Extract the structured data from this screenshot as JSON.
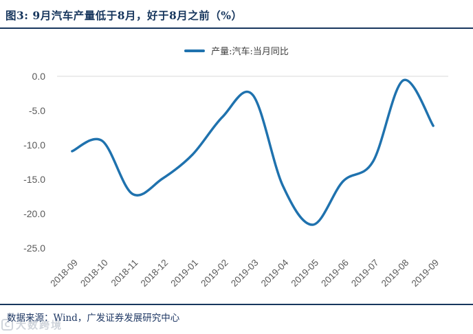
{
  "figure": {
    "title": "图3:  9月汽车产量低于8月，好于8月之前（%）",
    "source_note": "数据来源：Wind，广发证券发展研究中心",
    "watermark_text": "大数跨境",
    "watermark_logo": "C"
  },
  "chart_data": {
    "type": "line",
    "smooth": true,
    "title": "",
    "xlabel": "",
    "ylabel": "",
    "categories": [
      "2018-09",
      "2018-10",
      "2018-11",
      "2018-12",
      "2019-01",
      "2019-02",
      "2019-03",
      "2019-04",
      "2019-05",
      "2019-06",
      "2019-07",
      "2019-08",
      "2019-09"
    ],
    "series": [
      {
        "name": "产量:汽车:当月同比",
        "values": [
          -10.9,
          -9.4,
          -17.1,
          -14.9,
          -11.4,
          -5.9,
          -2.7,
          -15.9,
          -21.6,
          -15.3,
          -12.4,
          -0.6,
          -7.2
        ]
      }
    ],
    "ylim": [
      -25.0,
      0.0
    ],
    "yticks": [
      0,
      -5,
      -10,
      -15,
      -20,
      -25
    ],
    "ytick_labels": [
      "0.0",
      "-5.0",
      "-10.0",
      "-15.0",
      "-20.0",
      "-25.0"
    ],
    "xtick_rotation_deg": 45,
    "grid": "zero-line-only",
    "legend_position": "top-center",
    "colors": {
      "line": "#1F72AE",
      "gridline": "#D9D9D9",
      "axis_text": "#595959",
      "accent_navy": "#17365D"
    }
  }
}
